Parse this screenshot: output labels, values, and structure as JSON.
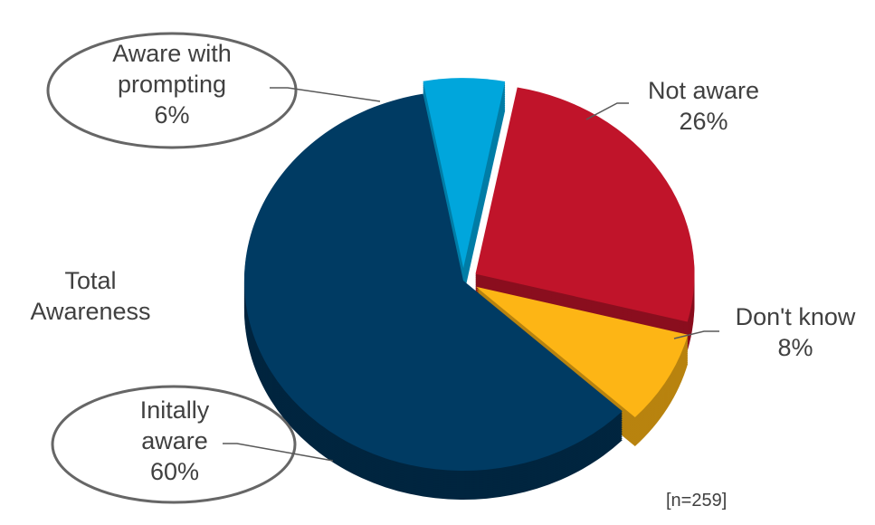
{
  "chart_data": {
    "type": "pie",
    "categories": [
      "Not aware",
      "Don't know",
      "Initally aware",
      "Aware with prompting"
    ],
    "values": [
      26,
      8,
      60,
      6
    ],
    "value_labels": [
      "26%",
      "8%",
      "60%",
      "6%"
    ],
    "label_lines": [
      [
        "Not aware",
        "26%"
      ],
      [
        "Don't know",
        "8%"
      ],
      [
        "Initally",
        "aware",
        "60%"
      ],
      [
        "Aware with",
        "prompting",
        "6%"
      ]
    ],
    "colors": [
      "#C0142A",
      "#FDB515",
      "#003B63",
      "#00A6DC"
    ],
    "side_colors": [
      "#8A0E1E",
      "#B8830F",
      "#00253F",
      "#007DA6"
    ],
    "annotation": [
      "Total",
      "Awareness"
    ],
    "note": "[n=259]",
    "style": "3d-exploded-pie",
    "legend": "none",
    "circled_segments": [
      "Initally aware",
      "Aware with prompting"
    ]
  }
}
